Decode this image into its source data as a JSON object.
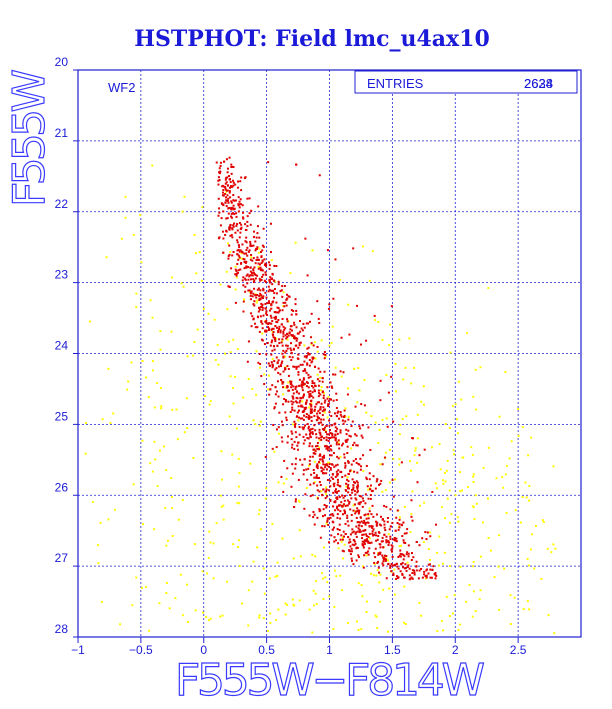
{
  "chart_data": {
    "type": "scatter",
    "title": "HSTPHOT: Field lmc_u4ax10",
    "xlabel": "F555W−F814W",
    "ylabel": "F555W",
    "xlim": [
      -1,
      3
    ],
    "ylim": [
      28,
      20
    ],
    "y_inverted": true,
    "grid": true,
    "chip_label": "WF2",
    "stats_box": {
      "label": "ENTRIES",
      "values": [
        "2638",
        "2624"
      ]
    },
    "xticks": [
      "−1",
      "−0.5",
      "0",
      "0.5",
      "1",
      "1.5",
      "2",
      "2.5"
    ],
    "xtick_values": [
      -1,
      -0.5,
      0,
      0.5,
      1,
      1.5,
      2,
      2.5
    ],
    "yticks": [
      "20",
      "21",
      "22",
      "23",
      "24",
      "25",
      "26",
      "27",
      "28"
    ],
    "ytick_values": [
      20,
      21,
      22,
      23,
      24,
      25,
      26,
      27,
      28
    ],
    "series": [
      {
        "color": "#ffff00",
        "distribution": "broad scatter around sequence",
        "ridge": [
          [
            -0.1,
            21.5
          ],
          [
            0.3,
            22.8
          ],
          [
            0.8,
            24.2
          ],
          [
            1.1,
            25.4
          ],
          [
            1.4,
            26.3
          ],
          [
            1.8,
            27.1
          ]
        ],
        "x_extent": [
          -0.95,
          2.8
        ],
        "y_extent": [
          21.2,
          27.95
        ],
        "count": 700
      },
      {
        "color": "#e00000",
        "distribution": "main sequence ridge",
        "ridge": [
          [
            0.15,
            21.4
          ],
          [
            0.28,
            22.3
          ],
          [
            0.48,
            23.1
          ],
          [
            0.65,
            23.8
          ],
          [
            0.82,
            24.6
          ],
          [
            0.97,
            25.4
          ],
          [
            1.12,
            26.1
          ],
          [
            1.32,
            26.6
          ],
          [
            1.5,
            26.95
          ],
          [
            1.75,
            27.1
          ]
        ],
        "x_extent": [
          0.1,
          1.85
        ],
        "y_extent": [
          21.2,
          27.2
        ],
        "count": 1900
      }
    ]
  }
}
